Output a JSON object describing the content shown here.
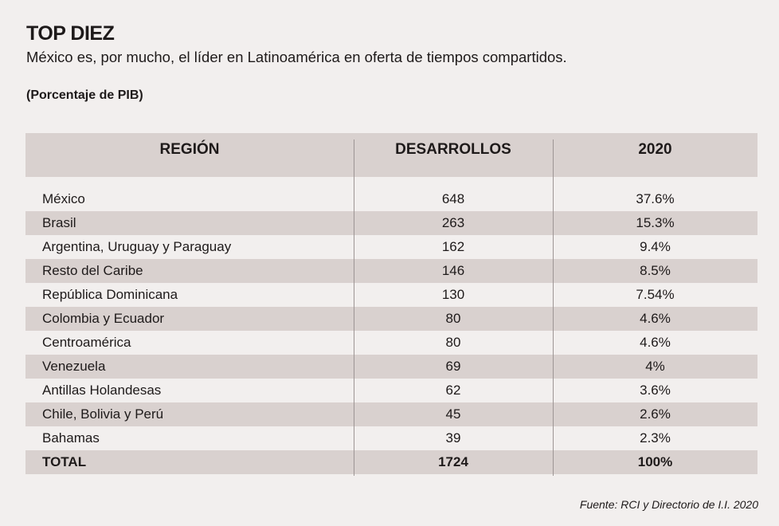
{
  "title": "TOP DIEZ",
  "subtitle": "México es, por mucho, el líder en Latinoamérica en oferta de tiempos compartidos.",
  "unit_note": "(Porcentaje de PIB)",
  "source": "Fuente: RCI y Directorio de I.I. 2020",
  "colors": {
    "background": "#f2efee",
    "shade": "#d9d1cf",
    "text": "#1e1a1a"
  },
  "chart_data": {
    "type": "table",
    "columns": [
      "REGIÓN",
      "DESARROLLOS",
      "2020"
    ],
    "rows": [
      [
        "México",
        "648",
        "37.6%"
      ],
      [
        "Brasil",
        "263",
        "15.3%"
      ],
      [
        "Argentina, Uruguay y Paraguay",
        "162",
        "9.4%"
      ],
      [
        "Resto del Caribe",
        "146",
        "8.5%"
      ],
      [
        "República Dominicana",
        "130",
        "7.54%"
      ],
      [
        "Colombia y Ecuador",
        "80",
        "4.6%"
      ],
      [
        "Centroamérica",
        "80",
        "4.6%"
      ],
      [
        "Venezuela",
        "69",
        "4%"
      ],
      [
        "Antillas Holandesas",
        "62",
        "3.6%"
      ],
      [
        "Chile, Bolivia y Perú",
        "45",
        "2.6%"
      ],
      [
        "Bahamas",
        "39",
        "2.3%"
      ]
    ],
    "total": [
      "TOTAL",
      "1724",
      "100%"
    ]
  }
}
